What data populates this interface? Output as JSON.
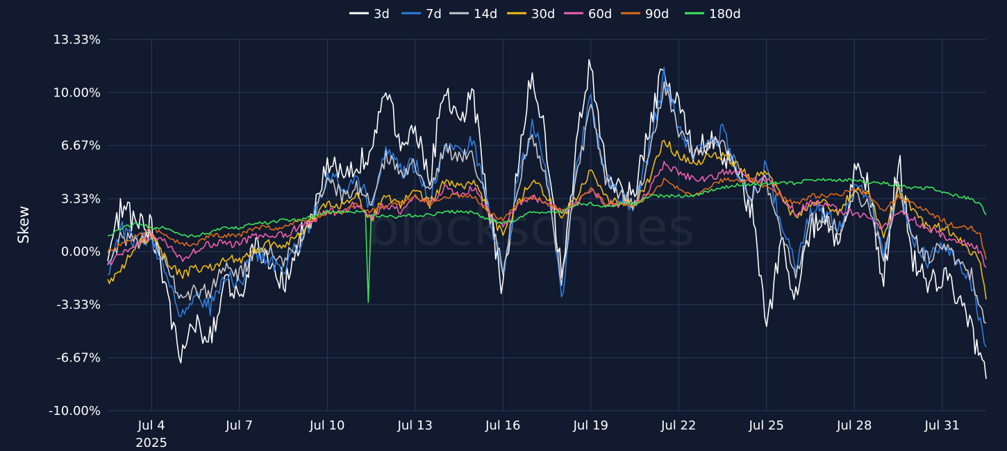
{
  "chart_data": {
    "type": "line",
    "title": "",
    "xlabel": "",
    "ylabel": "Skew",
    "watermark": "blockscholes",
    "background": "#111a2e",
    "grid": true,
    "legend_position": "top-center",
    "ylim": [
      -10.0,
      13.33
    ],
    "yticks": [
      13.33,
      10.0,
      6.67,
      3.33,
      0.0,
      -3.33,
      -6.67,
      -10.0
    ],
    "ytick_labels": [
      "13.33%",
      "10.00%",
      "6.67%",
      "3.33%",
      "0.00%",
      "-3.33%",
      "-6.67%",
      "-10.00%"
    ],
    "xlim": [
      2.5,
      32.5
    ],
    "xtick_positions": [
      4,
      7,
      10,
      13,
      16,
      19,
      22,
      25,
      28,
      31
    ],
    "xtick_labels": [
      "Jul 4",
      "Jul 7",
      "Jul 10",
      "Jul 13",
      "Jul 16",
      "Jul 19",
      "Jul 22",
      "Jul 25",
      "Jul 28",
      "Jul 31"
    ],
    "x_sublabel": "2025",
    "x_unit": "day of July 2025",
    "series": [
      {
        "name": "3d",
        "color": "#ffffff",
        "x": [
          2.5,
          3.0,
          3.5,
          4.0,
          4.5,
          5.0,
          5.5,
          6.0,
          6.5,
          7.0,
          7.5,
          8.0,
          8.5,
          9.0,
          9.5,
          10.0,
          10.5,
          11.0,
          11.5,
          12.0,
          12.5,
          13.0,
          13.5,
          14.0,
          14.5,
          15.0,
          15.5,
          16.0,
          16.5,
          17.0,
          17.5,
          18.0,
          18.5,
          19.0,
          19.5,
          20.0,
          20.5,
          21.0,
          21.5,
          22.0,
          22.5,
          23.0,
          23.5,
          24.0,
          24.5,
          25.0,
          25.5,
          26.0,
          26.5,
          27.0,
          27.5,
          28.0,
          28.5,
          29.0,
          29.5,
          30.0,
          30.5,
          31.0,
          31.5,
          32.0,
          32.3,
          32.5
        ],
        "y": [
          -0.5,
          3.0,
          1.5,
          1.5,
          -2.5,
          -6.5,
          -4.5,
          -5.5,
          -2.0,
          -3.0,
          0.5,
          -1.0,
          -2.0,
          0.5,
          2.5,
          6.0,
          4.5,
          5.5,
          6.5,
          10.2,
          7.0,
          7.5,
          4.5,
          10.5,
          8.5,
          9.5,
          3.0,
          -2.5,
          5.0,
          11.5,
          6.5,
          -1.5,
          6.5,
          12.0,
          5.5,
          4.0,
          3.5,
          8.0,
          11.5,
          9.0,
          6.5,
          7.0,
          6.0,
          5.0,
          2.5,
          -5.0,
          0.5,
          -3.0,
          1.5,
          2.5,
          0.5,
          5.5,
          4.0,
          -2.0,
          6.0,
          -0.5,
          -2.0,
          -1.5,
          -3.0,
          -5.0,
          -7.0,
          -8.0
        ]
      },
      {
        "name": "7d",
        "color": "#2f7de1",
        "x": [
          2.5,
          3.0,
          3.5,
          4.0,
          4.5,
          5.0,
          5.5,
          6.0,
          6.5,
          7.0,
          7.5,
          8.0,
          8.5,
          9.0,
          9.5,
          10.0,
          10.5,
          11.0,
          11.5,
          12.0,
          12.5,
          13.0,
          13.5,
          14.0,
          14.5,
          15.0,
          15.5,
          16.0,
          16.5,
          17.0,
          17.5,
          18.0,
          18.5,
          19.0,
          19.5,
          20.0,
          20.5,
          21.0,
          21.5,
          22.0,
          22.5,
          23.0,
          23.5,
          24.0,
          24.5,
          25.0,
          25.5,
          26.0,
          26.5,
          27.0,
          27.5,
          28.0,
          28.5,
          29.0,
          29.5,
          30.0,
          30.5,
          31.0,
          31.5,
          32.0,
          32.3,
          32.5
        ],
        "y": [
          -1.5,
          1.5,
          0.5,
          1.0,
          -1.5,
          -4.0,
          -3.0,
          -3.5,
          -1.5,
          -2.0,
          0.0,
          -0.5,
          -1.0,
          0.5,
          2.0,
          5.0,
          4.0,
          4.5,
          3.0,
          6.5,
          5.0,
          5.5,
          3.5,
          6.5,
          6.0,
          7.0,
          2.5,
          -1.5,
          4.5,
          8.0,
          5.0,
          -3.0,
          5.0,
          10.0,
          4.5,
          3.5,
          3.0,
          6.5,
          11.0,
          8.0,
          6.0,
          6.5,
          7.5,
          5.0,
          3.5,
          5.5,
          1.5,
          -1.0,
          2.5,
          2.5,
          1.5,
          4.0,
          3.5,
          -0.5,
          4.5,
          1.0,
          -0.5,
          0.5,
          -0.5,
          -2.0,
          -4.5,
          -6.0
        ]
      },
      {
        "name": "14d",
        "color": "#c8c8cc",
        "x": [
          2.5,
          3.0,
          3.5,
          4.0,
          4.5,
          5.0,
          5.5,
          6.0,
          6.5,
          7.0,
          7.5,
          8.0,
          8.5,
          9.0,
          9.5,
          10.0,
          10.5,
          11.0,
          11.5,
          12.0,
          12.5,
          13.0,
          13.5,
          14.0,
          14.5,
          15.0,
          15.5,
          16.0,
          16.5,
          17.0,
          17.5,
          18.0,
          18.5,
          19.0,
          19.5,
          20.0,
          20.5,
          21.0,
          21.5,
          22.0,
          22.5,
          23.0,
          23.5,
          24.0,
          24.5,
          25.0,
          25.5,
          26.0,
          26.5,
          27.0,
          27.5,
          28.0,
          28.5,
          29.0,
          29.5,
          30.0,
          30.5,
          31.0,
          31.5,
          32.0,
          32.3,
          32.5
        ],
        "y": [
          -1.0,
          1.0,
          0.5,
          1.0,
          -1.0,
          -3.0,
          -2.5,
          -2.5,
          -1.0,
          -1.5,
          0.0,
          0.0,
          -0.5,
          0.5,
          2.0,
          4.5,
          3.5,
          4.0,
          3.0,
          6.0,
          5.0,
          5.5,
          3.5,
          6.5,
          6.0,
          6.0,
          2.5,
          -1.0,
          4.0,
          7.5,
          4.5,
          -2.0,
          4.5,
          9.0,
          4.5,
          3.5,
          3.0,
          6.0,
          10.5,
          7.5,
          6.0,
          6.5,
          7.0,
          5.0,
          3.5,
          4.5,
          1.0,
          -1.5,
          2.0,
          2.0,
          1.5,
          3.5,
          3.0,
          -0.5,
          4.0,
          1.0,
          -0.5,
          0.5,
          -0.5,
          -1.5,
          -3.5,
          -4.5
        ]
      },
      {
        "name": "30d",
        "color": "#f2bc14",
        "x": [
          2.5,
          3.0,
          3.5,
          4.0,
          4.5,
          5.0,
          5.5,
          6.0,
          6.5,
          7.0,
          7.5,
          8.0,
          8.5,
          9.0,
          9.5,
          10.0,
          10.5,
          11.0,
          11.5,
          12.0,
          12.5,
          13.0,
          13.5,
          14.0,
          14.5,
          15.0,
          15.5,
          16.0,
          16.5,
          17.0,
          17.5,
          18.0,
          18.5,
          19.0,
          19.5,
          20.0,
          20.5,
          21.0,
          21.5,
          22.0,
          22.5,
          23.0,
          23.5,
          24.0,
          24.5,
          25.0,
          25.5,
          26.0,
          26.5,
          27.0,
          27.5,
          28.0,
          28.5,
          29.0,
          29.5,
          30.0,
          30.5,
          31.0,
          31.5,
          32.0,
          32.3,
          32.5
        ],
        "y": [
          -2.0,
          -1.0,
          0.5,
          1.0,
          -0.5,
          -1.5,
          -1.0,
          -1.0,
          -0.5,
          -0.5,
          0.0,
          0.5,
          0.5,
          1.0,
          2.0,
          3.0,
          3.0,
          3.5,
          2.0,
          3.5,
          3.0,
          4.0,
          3.0,
          4.5,
          4.0,
          4.5,
          2.5,
          1.0,
          3.0,
          4.5,
          3.5,
          2.0,
          3.5,
          5.0,
          3.5,
          3.0,
          3.0,
          4.5,
          7.0,
          6.0,
          5.5,
          6.0,
          6.0,
          5.5,
          4.5,
          5.0,
          3.5,
          2.0,
          3.0,
          3.0,
          2.5,
          4.0,
          3.5,
          1.0,
          4.0,
          2.5,
          1.5,
          1.5,
          1.0,
          0.0,
          -0.5,
          -3.0
        ]
      },
      {
        "name": "60d",
        "color": "#f25fb0",
        "x": [
          2.5,
          3.0,
          3.5,
          4.0,
          4.5,
          5.0,
          5.5,
          6.0,
          6.5,
          7.0,
          7.5,
          8.0,
          8.5,
          9.0,
          9.5,
          10.0,
          10.5,
          11.0,
          11.5,
          12.0,
          12.5,
          13.0,
          13.5,
          14.0,
          14.5,
          15.0,
          15.5,
          16.0,
          16.5,
          17.0,
          17.5,
          18.0,
          18.5,
          19.0,
          19.5,
          20.0,
          20.5,
          21.0,
          21.5,
          22.0,
          22.5,
          23.0,
          23.5,
          24.0,
          24.5,
          25.0,
          25.5,
          26.0,
          26.5,
          27.0,
          27.5,
          28.0,
          28.5,
          29.0,
          29.5,
          30.0,
          30.5,
          31.0,
          31.5,
          32.0,
          32.3,
          32.5
        ],
        "y": [
          -0.8,
          0.0,
          0.5,
          1.0,
          0.5,
          -0.5,
          0.0,
          0.5,
          0.5,
          0.5,
          1.0,
          1.0,
          1.0,
          1.5,
          2.0,
          2.5,
          2.5,
          3.0,
          2.0,
          3.0,
          2.5,
          3.5,
          3.0,
          4.0,
          3.5,
          4.0,
          2.5,
          1.5,
          3.0,
          3.5,
          3.0,
          2.5,
          3.0,
          4.0,
          3.0,
          3.0,
          3.0,
          4.0,
          5.5,
          5.0,
          4.5,
          4.5,
          5.0,
          5.0,
          4.5,
          4.5,
          3.5,
          2.5,
          3.0,
          3.0,
          2.5,
          2.5,
          2.0,
          1.5,
          2.5,
          2.0,
          1.5,
          1.0,
          0.5,
          0.5,
          0.0,
          -1.0
        ]
      },
      {
        "name": "90d",
        "color": "#e06a1a",
        "x": [
          2.5,
          3.0,
          3.5,
          4.0,
          4.5,
          5.0,
          5.5,
          6.0,
          6.5,
          7.0,
          7.5,
          8.0,
          8.5,
          9.0,
          9.5,
          10.0,
          10.5,
          11.0,
          11.5,
          12.0,
          12.5,
          13.0,
          13.5,
          14.0,
          14.5,
          15.0,
          15.5,
          16.0,
          16.5,
          17.0,
          17.5,
          18.0,
          18.5,
          19.0,
          19.5,
          20.0,
          20.5,
          21.0,
          21.5,
          22.0,
          22.5,
          23.0,
          23.5,
          24.0,
          24.5,
          25.0,
          25.5,
          26.0,
          26.5,
          27.0,
          27.5,
          28.0,
          28.5,
          29.0,
          29.5,
          30.0,
          30.5,
          31.0,
          31.5,
          32.0,
          32.3,
          32.5
        ],
        "y": [
          0.0,
          0.5,
          1.0,
          1.5,
          1.0,
          0.5,
          0.5,
          1.0,
          1.0,
          1.0,
          1.5,
          1.5,
          1.5,
          2.0,
          2.0,
          2.5,
          2.5,
          3.0,
          2.5,
          3.0,
          3.0,
          3.5,
          3.0,
          3.5,
          3.5,
          3.5,
          2.5,
          2.0,
          3.0,
          3.5,
          3.0,
          2.5,
          3.0,
          4.0,
          3.0,
          3.0,
          3.0,
          3.5,
          4.5,
          4.0,
          3.5,
          4.0,
          4.5,
          4.5,
          4.5,
          4.0,
          3.5,
          3.0,
          3.5,
          3.5,
          3.5,
          4.0,
          3.5,
          2.5,
          3.5,
          3.0,
          2.5,
          2.0,
          1.5,
          1.5,
          1.0,
          -0.5
        ]
      },
      {
        "name": "180d",
        "color": "#3ae65c",
        "x": [
          2.5,
          3.0,
          3.5,
          4.0,
          4.5,
          5.0,
          5.5,
          6.0,
          6.5,
          7.0,
          7.5,
          8.0,
          8.5,
          9.0,
          9.5,
          10.0,
          10.5,
          11.0,
          11.3,
          11.4,
          11.5,
          12.0,
          12.5,
          13.0,
          13.5,
          14.0,
          14.5,
          15.0,
          15.5,
          16.0,
          16.5,
          17.0,
          17.5,
          18.0,
          18.5,
          19.0,
          19.5,
          20.0,
          20.5,
          21.0,
          21.5,
          22.0,
          22.5,
          23.0,
          23.5,
          24.0,
          24.5,
          25.0,
          25.5,
          26.0,
          26.5,
          27.0,
          27.5,
          28.0,
          28.5,
          29.0,
          29.5,
          30.0,
          30.5,
          31.0,
          31.5,
          32.0,
          32.3,
          32.5
        ],
        "y": [
          1.0,
          1.5,
          1.8,
          1.5,
          1.5,
          1.0,
          1.0,
          1.2,
          1.5,
          1.5,
          1.8,
          1.8,
          2.0,
          2.0,
          2.2,
          2.5,
          2.5,
          2.5,
          2.5,
          -3.2,
          2.3,
          2.2,
          2.2,
          2.3,
          2.3,
          2.5,
          2.5,
          2.5,
          2.0,
          1.8,
          2.0,
          2.5,
          2.5,
          2.5,
          3.0,
          3.0,
          2.8,
          3.0,
          3.0,
          3.5,
          3.5,
          3.5,
          3.5,
          3.8,
          4.0,
          4.2,
          4.2,
          4.3,
          4.3,
          4.3,
          4.5,
          4.5,
          4.5,
          4.5,
          4.3,
          4.3,
          4.2,
          4.0,
          4.0,
          3.8,
          3.5,
          3.3,
          3.0,
          2.3
        ]
      }
    ]
  }
}
